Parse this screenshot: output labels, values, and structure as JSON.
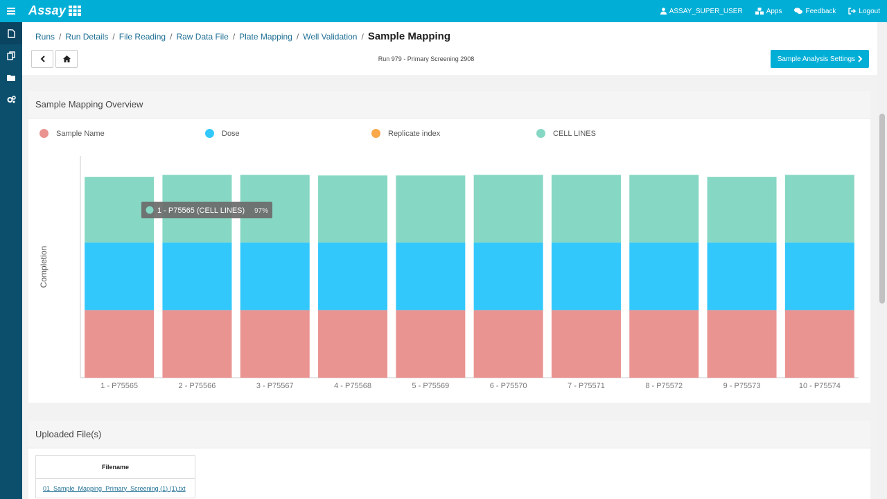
{
  "app": {
    "brand": "Assay"
  },
  "topbar": {
    "user": "ASSAY_SUPER_USER",
    "apps": "Apps",
    "feedback": "Feedback",
    "logout": "Logout"
  },
  "breadcrumb": {
    "items": [
      "Runs",
      "Run Details",
      "File Reading",
      "Raw Data File",
      "Plate Mapping",
      "Well Validation"
    ],
    "current": "Sample Mapping"
  },
  "run_label": "Run 979 - Primary Screening 2908",
  "settings_button": "Sample Analysis Settings",
  "overview": {
    "title": "Sample Mapping Overview",
    "tooltip": {
      "label": "1 - P75565 (CELL LINES)",
      "value": "97%",
      "color": "#86d7c3"
    }
  },
  "chart_data": {
    "type": "bar",
    "stacked": true,
    "ylabel": "Completion",
    "categories": [
      "1 - P75565",
      "2 - P75566",
      "3 - P75567",
      "4 - P75568",
      "5 - P75569",
      "6 - P75570",
      "7 - P75571",
      "8 - P75572",
      "9 - P75573",
      "10 - P75574"
    ],
    "series": [
      {
        "name": "Sample Name",
        "color": "#ea9491",
        "values": [
          100,
          100,
          100,
          100,
          100,
          100,
          100,
          100,
          100,
          100
        ]
      },
      {
        "name": "Dose",
        "color": "#33c8fc",
        "values": [
          100,
          100,
          100,
          100,
          100,
          100,
          100,
          100,
          100,
          100
        ]
      },
      {
        "name": "Replicate index",
        "color": "#f9a84a",
        "values": [
          0,
          0,
          0,
          0,
          0,
          0,
          0,
          0,
          0,
          0
        ]
      },
      {
        "name": "CELL LINES",
        "color": "#86d7c3",
        "values": [
          97,
          100,
          100,
          99,
          99,
          100,
          100,
          100,
          97,
          100
        ]
      }
    ],
    "ylim": [
      0,
      332
    ],
    "grid": false,
    "legend": "top-left"
  },
  "files": {
    "title": "Uploaded File(s)",
    "column": "Filename",
    "rows": [
      "01_Sample_Mapping_Primary_Screening (1) (1).txt"
    ]
  }
}
